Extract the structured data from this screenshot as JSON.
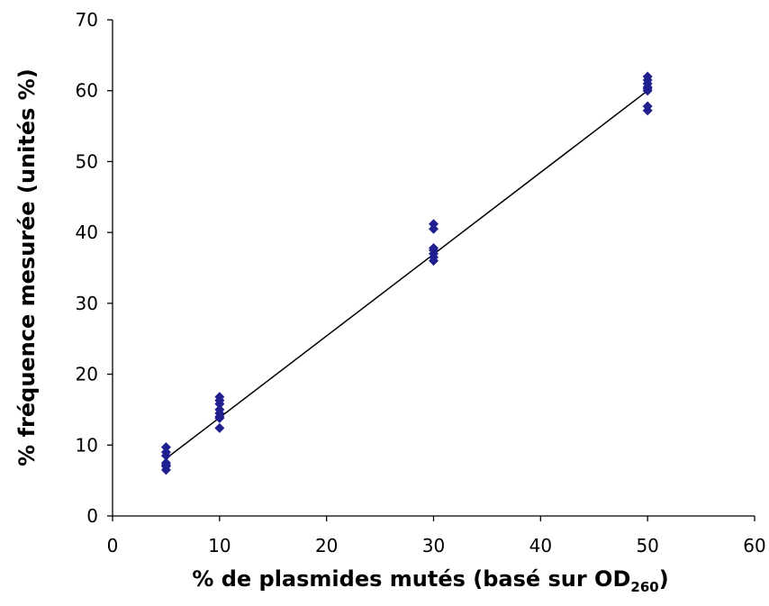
{
  "chart_data": {
    "type": "scatter",
    "xlabel": "% de plasmides mutés (basé sur OD",
    "xlabel_subscript": "260",
    "xlabel_suffix": ")",
    "ylabel": "% fréquence mesurée (unités %)",
    "xlim": [
      0,
      60
    ],
    "ylim": [
      0,
      70
    ],
    "x_ticks": [
      "0",
      "10",
      "20",
      "30",
      "40",
      "50",
      "60"
    ],
    "y_ticks": [
      "0",
      "10",
      "20",
      "30",
      "40",
      "50",
      "60",
      "70"
    ],
    "grid": false,
    "legend": "none",
    "marker": "diamond",
    "marker_color": "#1f1f8f",
    "line_color": "#000000",
    "series": [
      {
        "x": [
          5,
          5,
          5,
          5,
          5,
          5,
          5,
          10,
          10,
          10,
          10,
          10,
          10,
          10,
          10,
          30,
          30,
          30,
          30,
          30,
          30,
          30,
          50,
          50,
          50,
          50,
          50,
          50,
          50,
          50
        ],
        "y": [
          6.5,
          7.0,
          7.5,
          8.5,
          9.0,
          9.7,
          7.2,
          12.4,
          14.0,
          14.5,
          15.0,
          15.8,
          16.3,
          16.8,
          13.8,
          36.0,
          36.5,
          37.0,
          37.5,
          37.8,
          40.5,
          41.2,
          57.2,
          57.8,
          60.0,
          60.5,
          61.0,
          61.5,
          62.0,
          60.3
        ]
      }
    ],
    "trendline": {
      "x": [
        5,
        50
      ],
      "y": [
        8.1,
        60.0
      ]
    }
  }
}
